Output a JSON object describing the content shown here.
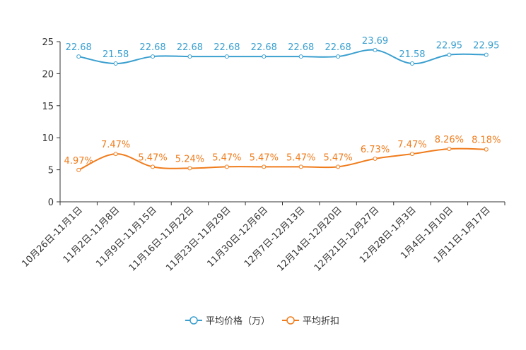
{
  "chart_data": {
    "type": "line",
    "categories": [
      "10月26日-11月1日",
      "11月2日-11月8日",
      "11月9日-11月15日",
      "11月16日-11月22日",
      "11月23日-11月29日",
      "11月30日-12月6日",
      "12月7日-12月13日",
      "12月14日-12月20日",
      "12月21日-12月27日",
      "12月28日-1月3日",
      "1月4日-1月10日",
      "1月11日-1月17日"
    ],
    "ylim": [
      0,
      25
    ],
    "yticks": [
      0,
      5,
      10,
      15,
      20,
      25
    ],
    "series": [
      {
        "name": "平均价格（万）",
        "color": "#3a9fcf",
        "values": [
          22.68,
          21.58,
          22.68,
          22.68,
          22.68,
          22.68,
          22.68,
          22.68,
          23.69,
          21.58,
          22.95,
          22.95
        ],
        "labels": [
          "22.68",
          "21.58",
          "22.68",
          "22.68",
          "22.68",
          "22.68",
          "22.68",
          "22.68",
          "23.69",
          "21.58",
          "22.95",
          "22.95"
        ]
      },
      {
        "name": "平均折扣",
        "color": "#f07c1c",
        "values": [
          4.97,
          7.47,
          5.47,
          5.24,
          5.47,
          5.47,
          5.47,
          5.47,
          6.73,
          7.47,
          8.26,
          8.18
        ],
        "labels": [
          "4.97%",
          "7.47%",
          "5.47%",
          "5.24%",
          "5.47%",
          "5.47%",
          "5.47%",
          "5.47%",
          "6.73%",
          "7.47%",
          "8.26%",
          "8.18%"
        ]
      }
    ],
    "legend_position": "bottom-center"
  }
}
